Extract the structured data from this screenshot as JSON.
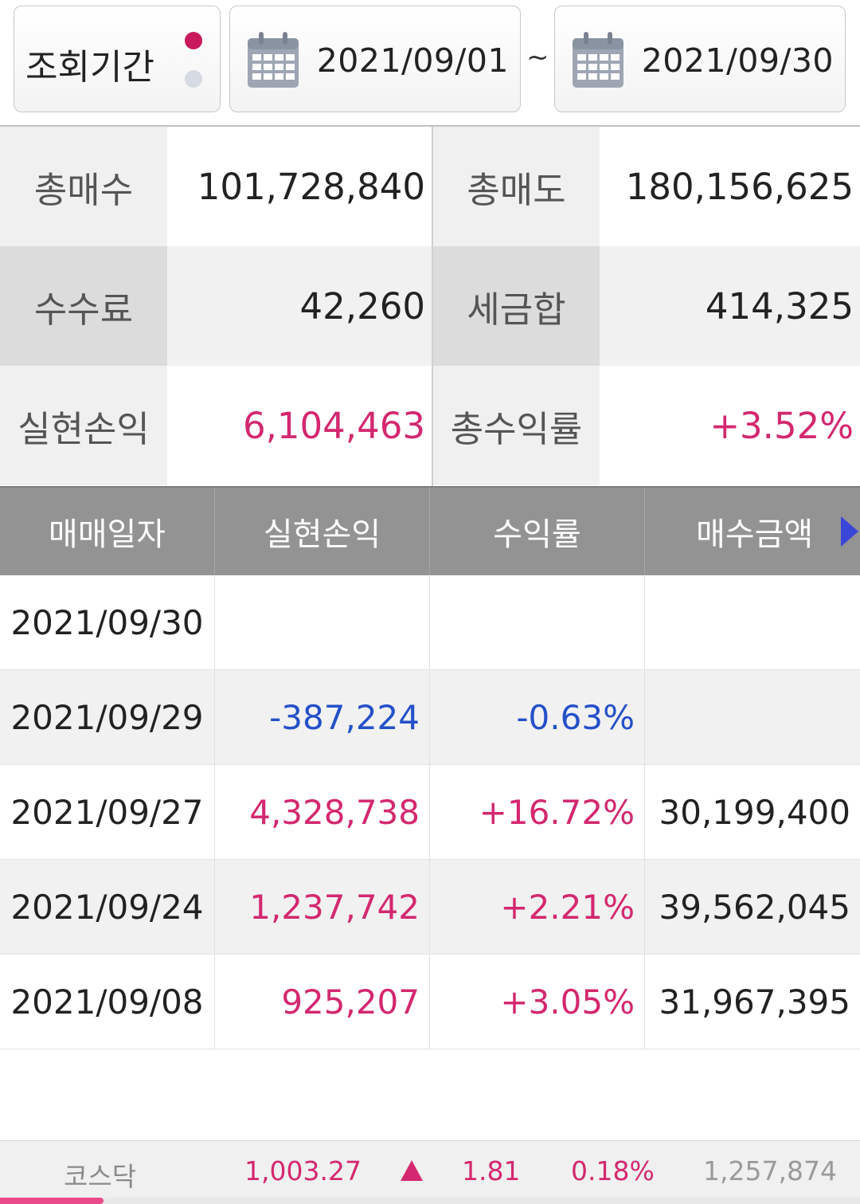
{
  "period": {
    "label": "조회기간",
    "start_date": "2021/09/01",
    "separator": "~",
    "end_date": "2021/09/30"
  },
  "summary": {
    "rows": [
      [
        {
          "label": "총매수",
          "value": "101,728,840"
        },
        {
          "label": "총매도",
          "value": "180,156,625"
        }
      ],
      [
        {
          "label": "수수료",
          "value": "42,260"
        },
        {
          "label": "세금합",
          "value": "414,325"
        }
      ],
      [
        {
          "label": "실현손익",
          "value": "6,104,463"
        },
        {
          "label": "총수익률",
          "value": "+3.52%"
        }
      ]
    ]
  },
  "table": {
    "headers": [
      "매매일자",
      "실현손익",
      "수익률",
      "매수금액"
    ],
    "rows": [
      {
        "date": "2021/09/30",
        "pnl": "",
        "rate": "",
        "buy": ""
      },
      {
        "date": "2021/09/29",
        "pnl": "-387,224",
        "rate": "-0.63%",
        "buy": ""
      },
      {
        "date": "2021/09/27",
        "pnl": "4,328,738",
        "rate": "+16.72%",
        "buy": "30,199,400"
      },
      {
        "date": "2021/09/24",
        "pnl": "1,237,742",
        "rate": "+2.21%",
        "buy": "39,562,045"
      },
      {
        "date": "2021/09/08",
        "pnl": "925,207",
        "rate": "+3.05%",
        "buy": "31,967,395"
      }
    ]
  },
  "ticker": {
    "name": "코스닥",
    "price": "1,003.27",
    "direction_icon": "up-triangle-icon",
    "change": "1.81",
    "percent": "0.18%",
    "volume": "1,257,874",
    "scroll_progress": 0.12
  },
  "colors": {
    "positive": "#d3286f",
    "negative": "#2450c8",
    "header_bg": "#939393",
    "accent": "#c8195c"
  }
}
